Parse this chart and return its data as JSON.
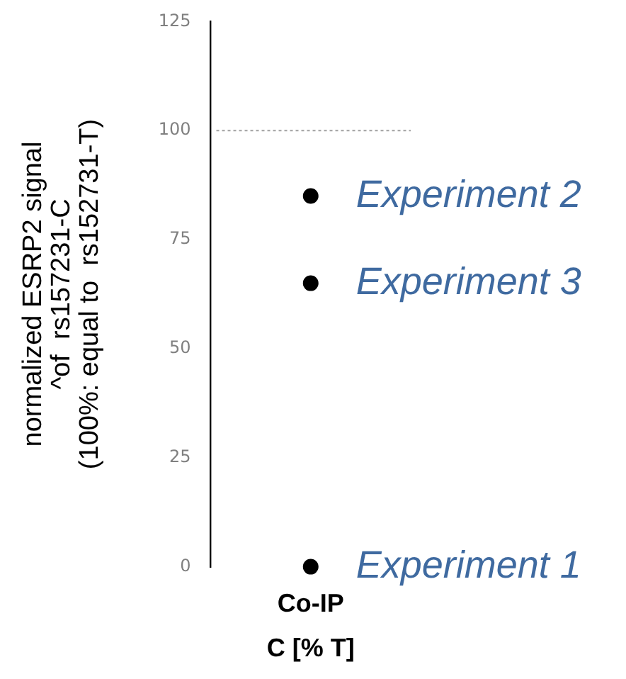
{
  "chart_data": {
    "type": "scatter",
    "categories": [
      "Co-IP"
    ],
    "xlabel": "C [% T]",
    "ylabel": "normalized ESRP2 signal\n^of  rs157231-C\n(100%: equal to  rs152731-T)",
    "series": [
      {
        "x": [
          "Co-IP",
          "Co-IP",
          "Co-IP"
        ],
        "values": [
          0,
          85,
          65
        ],
        "color": "#000000"
      }
    ],
    "ylim": [
      0,
      125
    ],
    "yticks": [
      0,
      25,
      50,
      75,
      100,
      125
    ],
    "grid": false,
    "legend": false,
    "marker": "circle",
    "ref_lines": [
      {
        "axis": "y",
        "value": 100,
        "color": "#a0a0a0",
        "line_style": "dotted"
      }
    ],
    "annotations": [
      {
        "text": "Experiment 1",
        "x": "Co-IP",
        "y": 0
      },
      {
        "text": "Experiment 2",
        "x": "Co-IP",
        "y": 85
      },
      {
        "text": "Experiment 3",
        "x": "Co-IP",
        "y": 65
      }
    ]
  }
}
